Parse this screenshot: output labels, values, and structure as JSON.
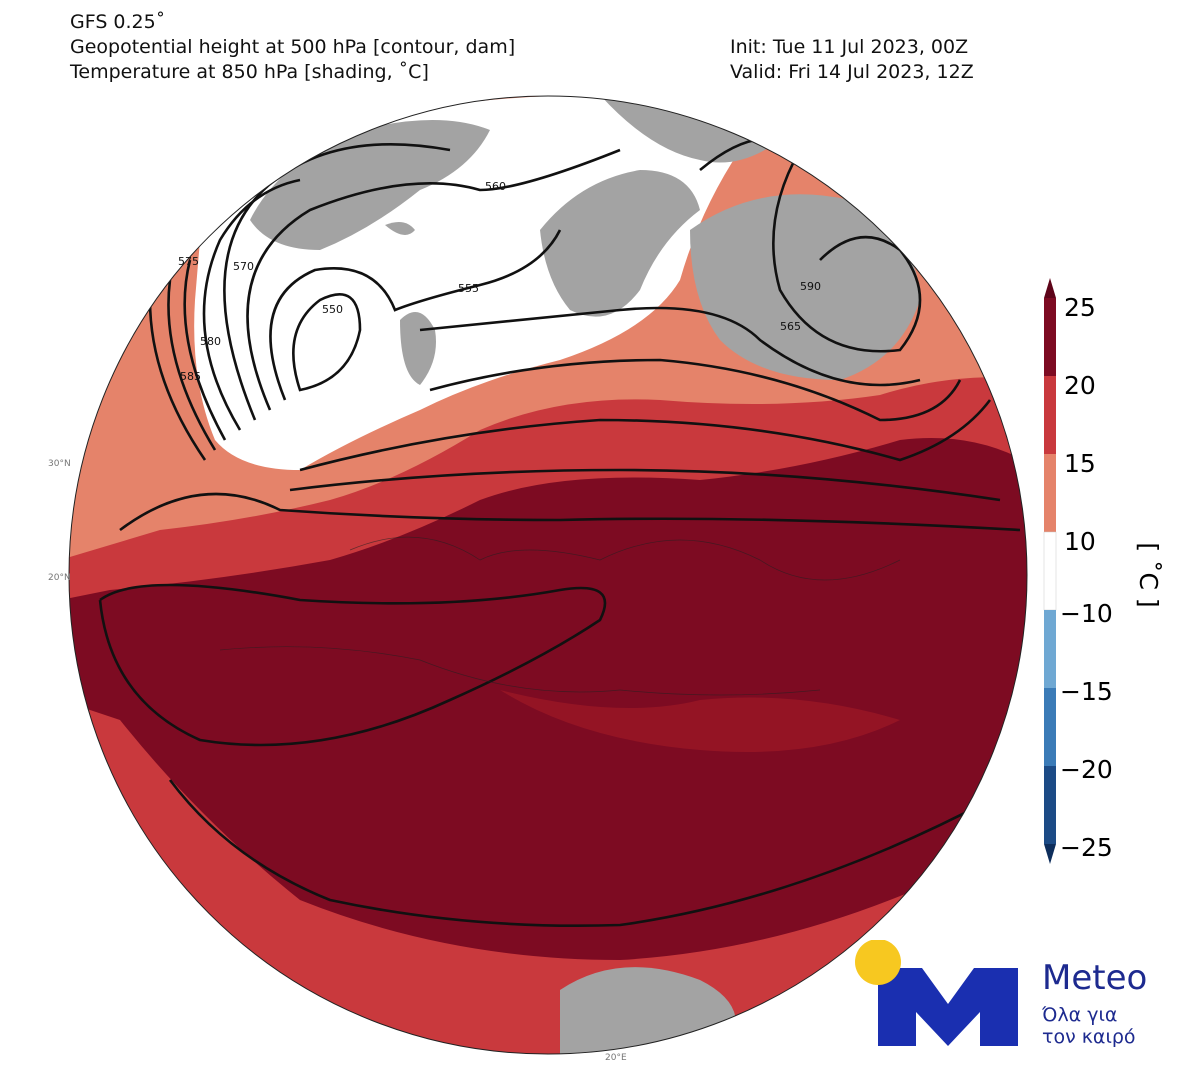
{
  "header": {
    "model": "GFS 0.25˚",
    "line_contour": "Geopotential height at 500 hPa [contour, dam]",
    "line_shading": "Temperature at 850 hPa [shading, ˚C]",
    "init": "Init: Tue 11 Jul 2023, 00Z",
    "valid": "Valid: Fri 14 Jul 2023, 12Z"
  },
  "map": {
    "projection": "orthographic",
    "grid_labels": [
      "30°N",
      "20°N",
      "20°E"
    ],
    "contour_labels": [
      "550",
      "555",
      "560",
      "565",
      "570",
      "575",
      "580",
      "585",
      "590"
    ]
  },
  "colorbar": {
    "label": "[ ˚C ]",
    "ticks": [
      "25",
      "20",
      "15",
      "10",
      "−10",
      "−15",
      "−20",
      "−25"
    ],
    "bins": [
      {
        "range": "20 to 25",
        "color": "#7d0b22"
      },
      {
        "range": "15 to 20",
        "color": "#c9393d"
      },
      {
        "range": "10 to 15",
        "color": "#e5836a"
      },
      {
        "range": "-10 to 10",
        "color": "#ffffff"
      },
      {
        "range": "-15 to -10",
        "color": "#6fa8d3"
      },
      {
        "range": "-20 to -15",
        "color": "#3b7bb7"
      },
      {
        "range": "-25 to -20",
        "color": "#1c4b86"
      }
    ],
    "masked_color": "#a3a3a3"
  },
  "logo": {
    "brand": "Meteo",
    "tagline1": "Όλα για",
    "tagline2": "τον καιρό",
    "sun_color": "#f7c820",
    "m_color": "#1a2fb0"
  }
}
